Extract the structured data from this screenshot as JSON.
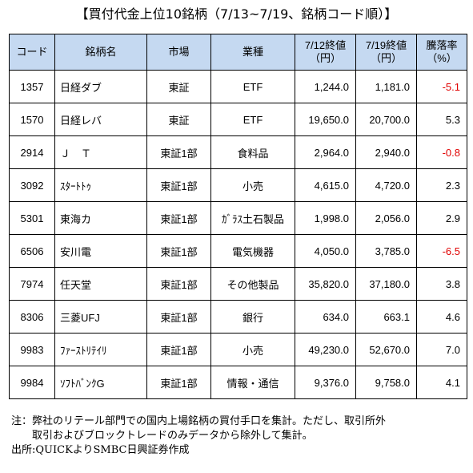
{
  "title": "【買付代金上位10銘柄（7/13~7/19、銘柄コード順）】",
  "headers": {
    "code": "コード",
    "name": "銘柄名",
    "market": "市場",
    "sector": "業種",
    "price_0712_line1": "7/12終値",
    "price_0712_line2": "（円）",
    "price_0719_line1": "7/19終値",
    "price_0719_line2": "（円）",
    "change_line1": "騰落率",
    "change_line2": "（%）"
  },
  "rows": [
    {
      "code": "1357",
      "name": "日経ダブ",
      "market": "東証",
      "sector": "ETF",
      "p1": "1,244.0",
      "p2": "1,181.0",
      "chg": "-5.1",
      "neg": true
    },
    {
      "code": "1570",
      "name": "日経レバ",
      "market": "東証",
      "sector": "ETF",
      "p1": "19,650.0",
      "p2": "20,700.0",
      "chg": "5.3",
      "neg": false
    },
    {
      "code": "2914",
      "name": "Ｊ　Ｔ",
      "market": "東証1部",
      "sector": "食料品",
      "p1": "2,964.0",
      "p2": "2,940.0",
      "chg": "-0.8",
      "neg": true
    },
    {
      "code": "3092",
      "name": "ｽﾀｰﾄﾄｩ",
      "market": "東証1部",
      "sector": "小売",
      "p1": "4,615.0",
      "p2": "4,720.0",
      "chg": "2.3",
      "neg": false
    },
    {
      "code": "5301",
      "name": "東海カ",
      "market": "東証1部",
      "sector": "ｶﾞﾗｽ土石製品",
      "p1": "1,998.0",
      "p2": "2,056.0",
      "chg": "2.9",
      "neg": false
    },
    {
      "code": "6506",
      "name": "安川電",
      "market": "東証1部",
      "sector": "電気機器",
      "p1": "4,050.0",
      "p2": "3,785.0",
      "chg": "-6.5",
      "neg": true
    },
    {
      "code": "7974",
      "name": "任天堂",
      "market": "東証1部",
      "sector": "その他製品",
      "p1": "35,820.0",
      "p2": "37,180.0",
      "chg": "3.8",
      "neg": false
    },
    {
      "code": "8306",
      "name": "三菱UFJ",
      "market": "東証1部",
      "sector": "銀行",
      "p1": "634.0",
      "p2": "663.1",
      "chg": "4.6",
      "neg": false
    },
    {
      "code": "9983",
      "name": "ﾌｧｰｽﾄﾘﾃｲﾘ",
      "market": "東証1部",
      "sector": "小売",
      "p1": "49,230.0",
      "p2": "52,670.0",
      "chg": "7.0",
      "neg": false
    },
    {
      "code": "9984",
      "name": "ｿﾌﾄﾊﾞﾝｸG",
      "market": "東証1部",
      "sector": "情報・通信",
      "p1": "9,376.0",
      "p2": "9,758.0",
      "chg": "4.1",
      "neg": false
    }
  ],
  "notes": {
    "line1": "注：弊社のリテール部門での国内上場銘柄の買付手口を集計。ただし、取引所外",
    "line2": "取引およびブロックトレードのみデータから除外して集計。",
    "line3": "出所:QUICKよりSMBC日興証券作成"
  },
  "colors": {
    "header_bg": "#c5d9f1",
    "negative": "#e00000"
  }
}
